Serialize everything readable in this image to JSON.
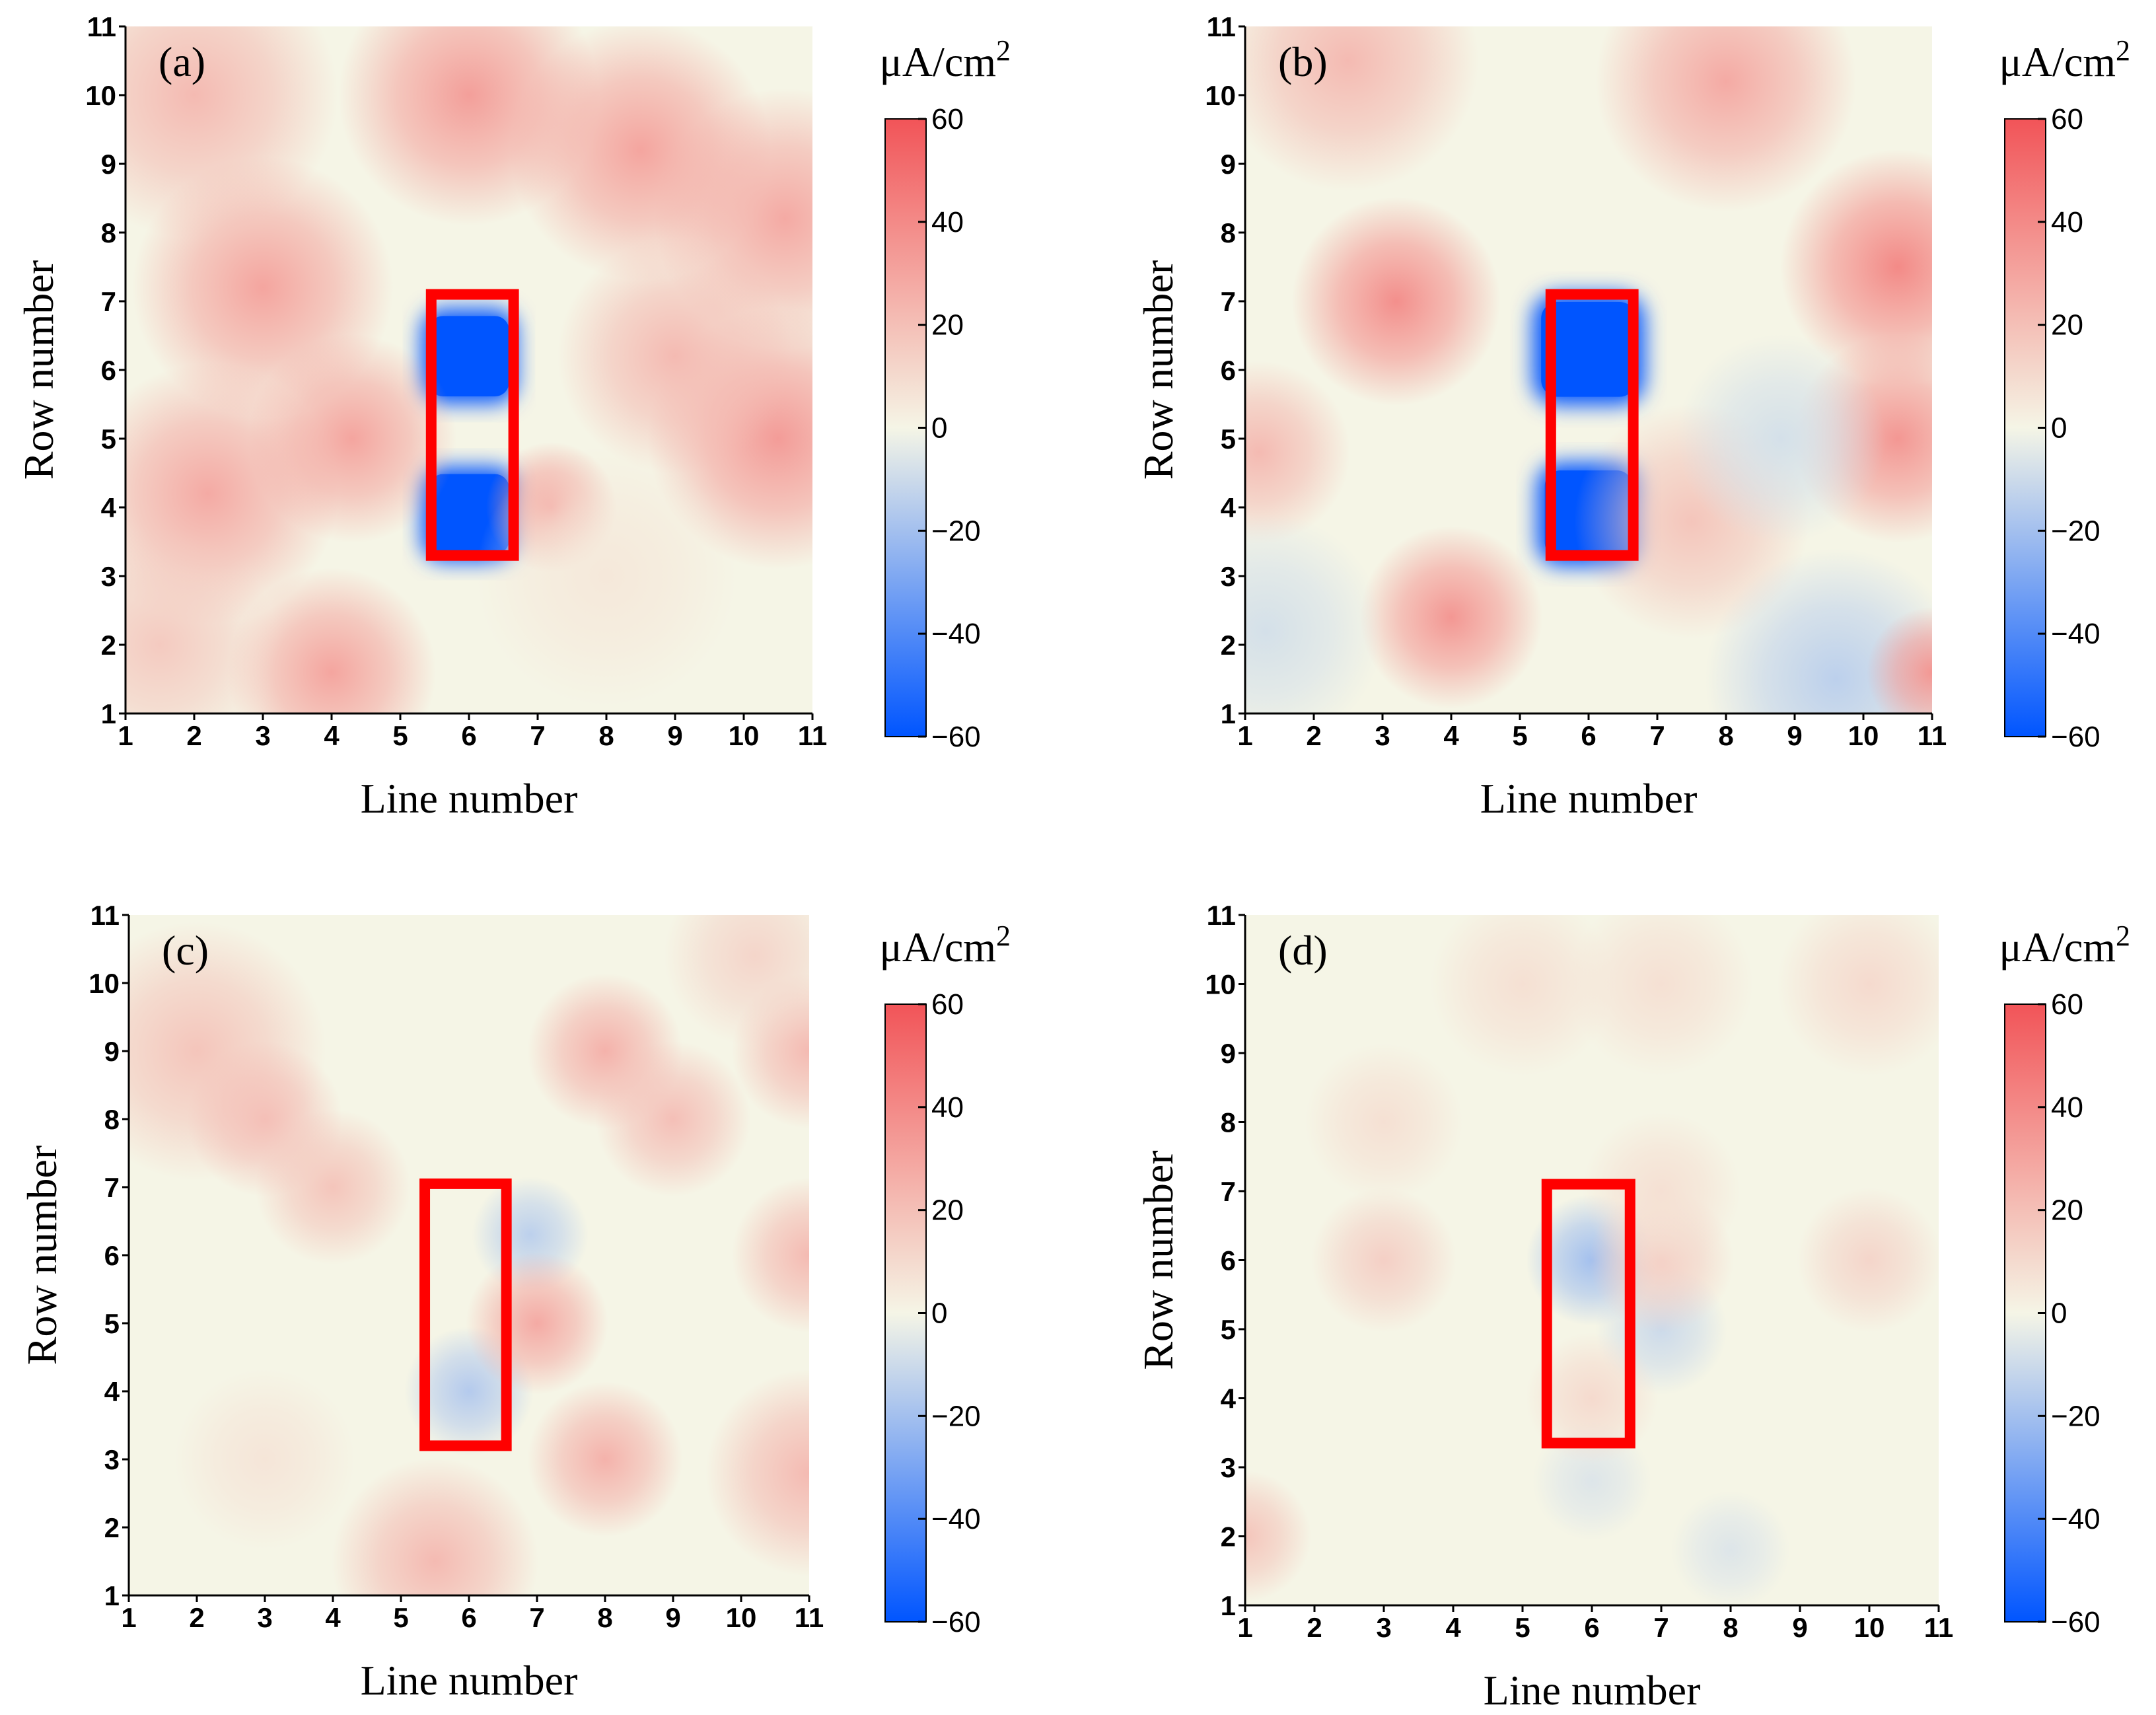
{
  "figure": {
    "panels": [
      {
        "id": "a",
        "label": "(a)",
        "xlabel": "Line number",
        "ylabel": "Row number",
        "unit": "μA/cm",
        "unit_exp": "2",
        "x_ticks": [
          "1",
          "2",
          "3",
          "4",
          "5",
          "6",
          "7",
          "8",
          "9",
          "10",
          "11"
        ],
        "y_ticks": [
          "1",
          "2",
          "3",
          "4",
          "5",
          "6",
          "7",
          "8",
          "9",
          "10",
          "11"
        ],
        "colorbar_ticks": [
          "60",
          "40",
          "20",
          "0",
          "−20",
          "−40",
          "−60"
        ]
      },
      {
        "id": "b",
        "label": "(b)",
        "xlabel": "Line number",
        "ylabel": "Row number",
        "unit": "μA/cm",
        "unit_exp": "2",
        "x_ticks": [
          "1",
          "2",
          "3",
          "4",
          "5",
          "6",
          "7",
          "8",
          "9",
          "10",
          "11"
        ],
        "y_ticks": [
          "1",
          "2",
          "3",
          "4",
          "5",
          "6",
          "7",
          "8",
          "9",
          "10",
          "11"
        ],
        "colorbar_ticks": [
          "60",
          "40",
          "20",
          "0",
          "−20",
          "−40",
          "−60"
        ]
      },
      {
        "id": "c",
        "label": "(c)",
        "xlabel": "Line number",
        "ylabel": "Row number",
        "unit": "μA/cm",
        "unit_exp": "2",
        "x_ticks": [
          "1",
          "2",
          "3",
          "4",
          "5",
          "6",
          "7",
          "8",
          "9",
          "10",
          "11"
        ],
        "y_ticks": [
          "1",
          "2",
          "3",
          "4",
          "5",
          "6",
          "7",
          "8",
          "9",
          "10",
          "11"
        ],
        "colorbar_ticks": [
          "60",
          "40",
          "20",
          "0",
          "−20",
          "−40",
          "−60"
        ]
      },
      {
        "id": "d",
        "label": "(d)",
        "xlabel": "Line number",
        "ylabel": "Row number",
        "unit": "μA/cm",
        "unit_exp": "2",
        "x_ticks": [
          "1",
          "2",
          "3",
          "4",
          "5",
          "6",
          "7",
          "8",
          "9",
          "10",
          "11"
        ],
        "y_ticks": [
          "1",
          "2",
          "3",
          "4",
          "5",
          "6",
          "7",
          "8",
          "9",
          "10",
          "11"
        ],
        "colorbar_ticks": [
          "60",
          "40",
          "20",
          "0",
          "−20",
          "−40",
          "−60"
        ]
      }
    ]
  },
  "chart_data": [
    {
      "type": "heatmap",
      "title": "(a)",
      "xlabel": "Line number",
      "ylabel": "Row number",
      "xlim": [
        1,
        11
      ],
      "ylim": [
        1,
        11
      ],
      "zlim": [
        -60,
        60
      ],
      "colorbar_label": "μA/cm2",
      "colorbar_ticks": [
        60,
        40,
        20,
        0,
        -20,
        -40,
        -60
      ],
      "colormap": {
        "low": "#0055ff",
        "mid": "#f5f5e6",
        "high": "#f25458"
      },
      "highlight_rect": {
        "x0": 5.45,
        "x1": 6.65,
        "y0": 3.3,
        "y1": 7.1,
        "color": "#ff0000"
      },
      "features": [
        {
          "x": 6.0,
          "y": 6.2,
          "value": -60,
          "sigma": 0.55,
          "kind": "box"
        },
        {
          "x": 6.0,
          "y": 3.9,
          "value": -60,
          "sigma": 0.55,
          "kind": "box"
        },
        {
          "x": 3.0,
          "y": 7.2,
          "value": 30,
          "sigma": 1.0
        },
        {
          "x": 2.2,
          "y": 4.2,
          "value": 28,
          "sigma": 1.0
        },
        {
          "x": 4.3,
          "y": 5.0,
          "value": 30,
          "sigma": 0.8
        },
        {
          "x": 6.0,
          "y": 10.0,
          "value": 32,
          "sigma": 1.0
        },
        {
          "x": 8.5,
          "y": 9.2,
          "value": 30,
          "sigma": 1.0
        },
        {
          "x": 10.6,
          "y": 8.2,
          "value": 28,
          "sigma": 1.0
        },
        {
          "x": 10.5,
          "y": 5.0,
          "value": 33,
          "sigma": 1.0
        },
        {
          "x": 7.2,
          "y": 4.0,
          "value": 32,
          "sigma": 0.5
        },
        {
          "x": 4.0,
          "y": 1.6,
          "value": 30,
          "sigma": 0.8
        },
        {
          "x": 2.0,
          "y": 10.0,
          "value": 22,
          "sigma": 1.1
        },
        {
          "x": 9.0,
          "y": 6.2,
          "value": 22,
          "sigma": 0.9
        },
        {
          "x": 8.0,
          "y": 3.0,
          "value": 5,
          "sigma": 1.0
        },
        {
          "x": 1.5,
          "y": 2.0,
          "value": 16,
          "sigma": 0.9
        }
      ]
    },
    {
      "type": "heatmap",
      "title": "(b)",
      "xlabel": "Line number",
      "ylabel": "Row number",
      "xlim": [
        1,
        11
      ],
      "ylim": [
        1,
        11
      ],
      "zlim": [
        -60,
        60
      ],
      "colorbar_label": "μA/cm2",
      "colorbar_ticks": [
        60,
        40,
        20,
        0,
        -20,
        -40,
        -60
      ],
      "colormap": {
        "low": "#0055ff",
        "mid": "#f5f5e6",
        "high": "#f25458"
      },
      "highlight_rect": {
        "x0": 5.45,
        "x1": 6.65,
        "y0": 3.3,
        "y1": 7.1,
        "color": "#ff0000"
      },
      "features": [
        {
          "x": 6.0,
          "y": 6.3,
          "value": -60,
          "sigma": 0.65,
          "kind": "box"
        },
        {
          "x": 6.0,
          "y": 3.9,
          "value": -60,
          "sigma": 0.6,
          "kind": "box"
        },
        {
          "x": 3.2,
          "y": 7.0,
          "value": 38,
          "sigma": 0.8
        },
        {
          "x": 10.5,
          "y": 7.5,
          "value": 40,
          "sigma": 0.9
        },
        {
          "x": 10.5,
          "y": 5.0,
          "value": 35,
          "sigma": 0.8
        },
        {
          "x": 4.0,
          "y": 2.4,
          "value": 35,
          "sigma": 0.7
        },
        {
          "x": 8.0,
          "y": 10.2,
          "value": 28,
          "sigma": 1.0
        },
        {
          "x": 2.5,
          "y": 10.5,
          "value": 22,
          "sigma": 1.0
        },
        {
          "x": 1.2,
          "y": 4.8,
          "value": 22,
          "sigma": 0.7
        },
        {
          "x": 7.5,
          "y": 3.8,
          "value": 18,
          "sigma": 0.9
        },
        {
          "x": 9.6,
          "y": 1.5,
          "value": -14,
          "sigma": 1.0
        },
        {
          "x": 1.3,
          "y": 2.2,
          "value": -8,
          "sigma": 0.9
        },
        {
          "x": 8.8,
          "y": 5.0,
          "value": -8,
          "sigma": 0.8
        },
        {
          "x": 11.0,
          "y": 1.6,
          "value": 35,
          "sigma": 0.5
        }
      ]
    },
    {
      "type": "heatmap",
      "title": "(c)",
      "xlabel": "Line number",
      "ylabel": "Row number",
      "xlim": [
        1,
        11
      ],
      "ylim": [
        1,
        11
      ],
      "zlim": [
        -60,
        60
      ],
      "colorbar_label": "μA/cm2",
      "colorbar_ticks": [
        60,
        40,
        20,
        0,
        -20,
        -40,
        -60
      ],
      "colormap": {
        "low": "#0055ff",
        "mid": "#f5f5e6",
        "high": "#f25458"
      },
      "highlight_rect": {
        "x0": 5.35,
        "x1": 6.55,
        "y0": 3.2,
        "y1": 7.05,
        "color": "#ff0000"
      },
      "features": [
        {
          "x": 6.9,
          "y": 6.3,
          "value": -14,
          "sigma": 0.45
        },
        {
          "x": 6.0,
          "y": 4.0,
          "value": -16,
          "sigma": 0.5
        },
        {
          "x": 7.0,
          "y": 5.0,
          "value": 28,
          "sigma": 0.55
        },
        {
          "x": 2.0,
          "y": 9.0,
          "value": 18,
          "sigma": 1.0
        },
        {
          "x": 3.0,
          "y": 8.0,
          "value": 20,
          "sigma": 0.6
        },
        {
          "x": 4.0,
          "y": 7.0,
          "value": 18,
          "sigma": 0.6
        },
        {
          "x": 8.0,
          "y": 9.0,
          "value": 25,
          "sigma": 0.6
        },
        {
          "x": 9.0,
          "y": 8.0,
          "value": 20,
          "sigma": 0.6
        },
        {
          "x": 11.0,
          "y": 9.0,
          "value": 22,
          "sigma": 0.6
        },
        {
          "x": 11.0,
          "y": 6.0,
          "value": 22,
          "sigma": 0.6
        },
        {
          "x": 8.0,
          "y": 3.0,
          "value": 25,
          "sigma": 0.6
        },
        {
          "x": 11.0,
          "y": 2.8,
          "value": 22,
          "sigma": 0.8
        },
        {
          "x": 5.5,
          "y": 1.5,
          "value": 22,
          "sigma": 0.8
        },
        {
          "x": 3.0,
          "y": 3.0,
          "value": 6,
          "sigma": 0.7
        },
        {
          "x": 10.2,
          "y": 10.4,
          "value": 12,
          "sigma": 0.7
        }
      ]
    },
    {
      "type": "heatmap",
      "title": "(d)",
      "xlabel": "Line number",
      "ylabel": "Row number",
      "xlim": [
        1,
        11
      ],
      "ylim": [
        1,
        11
      ],
      "zlim": [
        -60,
        60
      ],
      "colorbar_label": "μA/cm2",
      "colorbar_ticks": [
        60,
        40,
        20,
        0,
        -20,
        -40,
        -60
      ],
      "colormap": {
        "low": "#0055ff",
        "mid": "#f5f5e6",
        "high": "#f25458"
      },
      "highlight_rect": {
        "x0": 5.35,
        "x1": 6.55,
        "y0": 3.35,
        "y1": 7.1,
        "color": "#ff0000"
      },
      "features": [
        {
          "x": 6.0,
          "y": 6.0,
          "value": -20,
          "sigma": 0.5
        },
        {
          "x": 7.0,
          "y": 5.0,
          "value": -10,
          "sigma": 0.5
        },
        {
          "x": 6.0,
          "y": 2.8,
          "value": -6,
          "sigma": 0.45
        },
        {
          "x": 8.0,
          "y": 1.8,
          "value": -6,
          "sigma": 0.45
        },
        {
          "x": 3.0,
          "y": 6.0,
          "value": 14,
          "sigma": 0.55
        },
        {
          "x": 7.0,
          "y": 6.0,
          "value": 14,
          "sigma": 0.55
        },
        {
          "x": 10.0,
          "y": 6.0,
          "value": 12,
          "sigma": 0.55
        },
        {
          "x": 6.0,
          "y": 4.0,
          "value": 10,
          "sigma": 0.5
        },
        {
          "x": 1.0,
          "y": 2.0,
          "value": 18,
          "sigma": 0.5
        },
        {
          "x": 10.0,
          "y": 10.0,
          "value": 10,
          "sigma": 0.7
        },
        {
          "x": 5.0,
          "y": 10.0,
          "value": 8,
          "sigma": 0.7
        },
        {
          "x": 7.0,
          "y": 10.0,
          "value": 8,
          "sigma": 0.7
        },
        {
          "x": 3.0,
          "y": 8.0,
          "value": 8,
          "sigma": 0.6
        },
        {
          "x": 7.0,
          "y": 7.0,
          "value": 8,
          "sigma": 0.6
        }
      ]
    }
  ]
}
